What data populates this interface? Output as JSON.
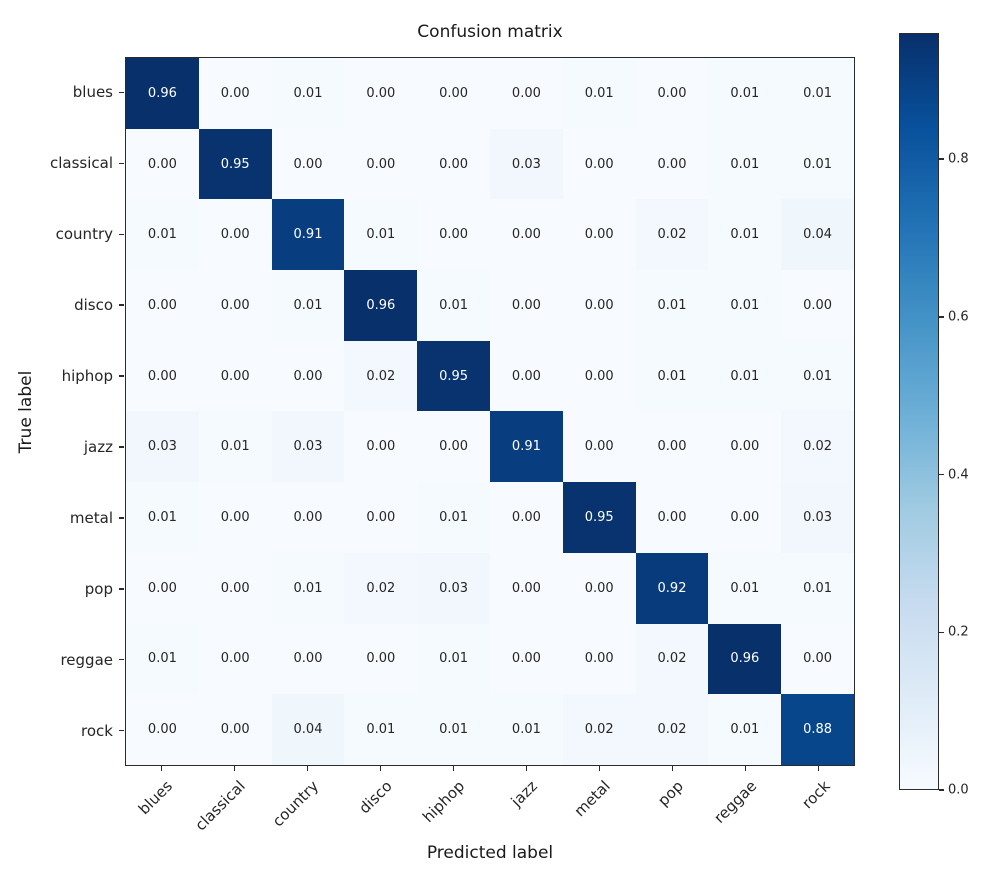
{
  "title": "Confusion matrix",
  "xlabel": "Predicted label",
  "ylabel": "True label",
  "chart_data": {
    "type": "heatmap",
    "title": "Confusion matrix",
    "xlabel": "Predicted label",
    "ylabel": "True label",
    "categories": [
      "blues",
      "classical",
      "country",
      "disco",
      "hiphop",
      "jazz",
      "metal",
      "pop",
      "reggae",
      "rock"
    ],
    "matrix": [
      [
        0.96,
        0.0,
        0.01,
        0.0,
        0.0,
        0.0,
        0.01,
        0.0,
        0.01,
        0.01
      ],
      [
        0.0,
        0.95,
        0.0,
        0.0,
        0.0,
        0.03,
        0.0,
        0.0,
        0.01,
        0.01
      ],
      [
        0.01,
        0.0,
        0.91,
        0.01,
        0.0,
        0.0,
        0.0,
        0.02,
        0.01,
        0.04
      ],
      [
        0.0,
        0.0,
        0.01,
        0.96,
        0.01,
        0.0,
        0.0,
        0.01,
        0.01,
        0.0
      ],
      [
        0.0,
        0.0,
        0.0,
        0.02,
        0.95,
        0.0,
        0.0,
        0.01,
        0.01,
        0.01
      ],
      [
        0.03,
        0.01,
        0.03,
        0.0,
        0.0,
        0.91,
        0.0,
        0.0,
        0.0,
        0.02
      ],
      [
        0.01,
        0.0,
        0.0,
        0.0,
        0.01,
        0.0,
        0.95,
        0.0,
        0.0,
        0.03
      ],
      [
        0.0,
        0.0,
        0.01,
        0.02,
        0.03,
        0.0,
        0.0,
        0.92,
        0.01,
        0.01
      ],
      [
        0.01,
        0.0,
        0.0,
        0.0,
        0.01,
        0.0,
        0.0,
        0.02,
        0.96,
        0.0
      ],
      [
        0.0,
        0.0,
        0.04,
        0.01,
        0.01,
        0.01,
        0.02,
        0.02,
        0.01,
        0.88
      ]
    ],
    "value_decimals": 2,
    "vmin": 0.0,
    "vmax": 0.96,
    "colormap_name": "Blues",
    "colormap_stops": [
      "#f7fbff",
      "#deebf7",
      "#c6dbef",
      "#9ecae1",
      "#6baed6",
      "#4292c6",
      "#2171b5",
      "#08519c",
      "#08306b"
    ],
    "colorbar_ticks": [
      {
        "label": "0.0",
        "value": 0.0
      },
      {
        "label": "0.2",
        "value": 0.2
      },
      {
        "label": "0.4",
        "value": 0.4
      },
      {
        "label": "0.6",
        "value": 0.6
      },
      {
        "label": "0.8",
        "value": 0.8
      }
    ],
    "cell_text_color_dark_bg": "#ffffff",
    "cell_text_color_light_bg": "#262626",
    "legend_position": "right-colorbar",
    "grid": false
  }
}
